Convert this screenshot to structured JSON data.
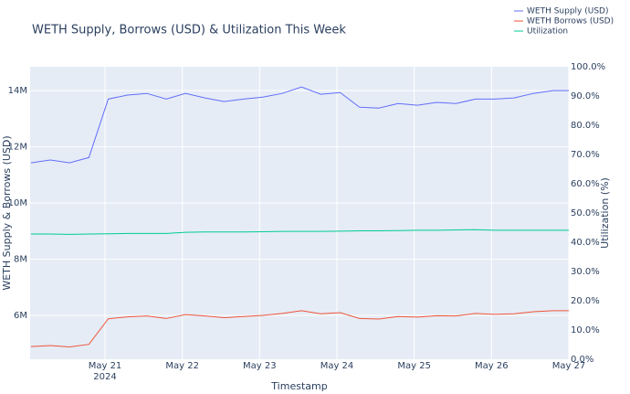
{
  "chart_data": {
    "type": "line",
    "title": "WETH Supply, Borrows (USD) & Utilization This Week",
    "x_label": "Timestamp",
    "y_label": "WETH Supply & Borrows (USD)",
    "y2_label": "Utilization (%)",
    "x": [
      "2024-05-20 01:00",
      "2024-05-20 07:00",
      "2024-05-20 13:00",
      "2024-05-20 19:00",
      "2024-05-21 01:00",
      "2024-05-21 07:00",
      "2024-05-21 13:00",
      "2024-05-21 19:00",
      "2024-05-22 01:00",
      "2024-05-22 07:00",
      "2024-05-22 13:00",
      "2024-05-22 19:00",
      "2024-05-23 01:00",
      "2024-05-23 07:00",
      "2024-05-23 13:00",
      "2024-05-23 19:00",
      "2024-05-24 01:00",
      "2024-05-24 07:00",
      "2024-05-24 13:00",
      "2024-05-24 19:00",
      "2024-05-25 01:00",
      "2024-05-25 07:00",
      "2024-05-25 13:00",
      "2024-05-25 19:00",
      "2024-05-26 01:00",
      "2024-05-26 07:00",
      "2024-05-26 13:00",
      "2024-05-26 19:00",
      "2024-05-27 00:00"
    ],
    "series": [
      {
        "name": "WETH Supply (USD)",
        "color": "#636efa",
        "values": [
          11430000,
          11530000,
          11430000,
          11620000,
          13700000,
          13840000,
          13900000,
          13700000,
          13900000,
          13740000,
          13610000,
          13700000,
          13770000,
          13900000,
          14130000,
          13870000,
          13930000,
          13410000,
          13380000,
          13540000,
          13480000,
          13580000,
          13540000,
          13700000,
          13700000,
          13740000,
          13900000,
          14000000,
          14000000
        ]
      },
      {
        "name": "WETH Borrows (USD)",
        "color": "#ef553b",
        "values": [
          4890000,
          4930000,
          4880000,
          4970000,
          5880000,
          5950000,
          5980000,
          5890000,
          6030000,
          5980000,
          5920000,
          5960000,
          6000000,
          6070000,
          6170000,
          6060000,
          6100000,
          5890000,
          5870000,
          5960000,
          5940000,
          5990000,
          5980000,
          6070000,
          6040000,
          6060000,
          6130000,
          6170000,
          6170000
        ]
      },
      {
        "name": "Utilization",
        "color": "#00cc96",
        "axis": "y2",
        "values": [
          42.8,
          42.8,
          42.7,
          42.8,
          42.9,
          43.0,
          43.0,
          43.0,
          43.4,
          43.5,
          43.5,
          43.5,
          43.6,
          43.7,
          43.7,
          43.7,
          43.8,
          43.9,
          43.9,
          44.0,
          44.1,
          44.1,
          44.2,
          44.3,
          44.1,
          44.1,
          44.1,
          44.1,
          44.1
        ]
      }
    ],
    "xlim": [
      "2024-05-20 00:45",
      "2024-05-27 00:00"
    ],
    "xticks": [
      {
        "value": "2024-05-21 00:00",
        "label": "May 21\n2024"
      },
      {
        "value": "2024-05-22 00:00",
        "label": "May 22"
      },
      {
        "value": "2024-05-23 00:00",
        "label": "May 23"
      },
      {
        "value": "2024-05-24 00:00",
        "label": "May 24"
      },
      {
        "value": "2024-05-25 00:00",
        "label": "May 25"
      },
      {
        "value": "2024-05-26 00:00",
        "label": "May 26"
      },
      {
        "value": "2024-05-27 00:00",
        "label": "May 27"
      }
    ],
    "ylim": [
      4440000,
      14850000
    ],
    "yticks": [
      {
        "value": 6000000,
        "label": "6M"
      },
      {
        "value": 8000000,
        "label": "8M"
      },
      {
        "value": 10000000,
        "label": "10M"
      },
      {
        "value": 12000000,
        "label": "12M"
      },
      {
        "value": 14000000,
        "label": "14M"
      }
    ],
    "y2lim": [
      0,
      100
    ],
    "y2ticks": [
      {
        "value": 0,
        "label": "0.0%"
      },
      {
        "value": 10,
        "label": "10.0%"
      },
      {
        "value": 20,
        "label": "20.0%"
      },
      {
        "value": 30,
        "label": "30.0%"
      },
      {
        "value": 40,
        "label": "40.0%"
      },
      {
        "value": 50,
        "label": "50.0%"
      },
      {
        "value": 60,
        "label": "60.0%"
      },
      {
        "value": 70,
        "label": "70.0%"
      },
      {
        "value": 80,
        "label": "80.0%"
      },
      {
        "value": 90,
        "label": "90.0%"
      },
      {
        "value": 100,
        "label": "100.0%"
      }
    ],
    "grid": true,
    "legend": "top-right"
  }
}
